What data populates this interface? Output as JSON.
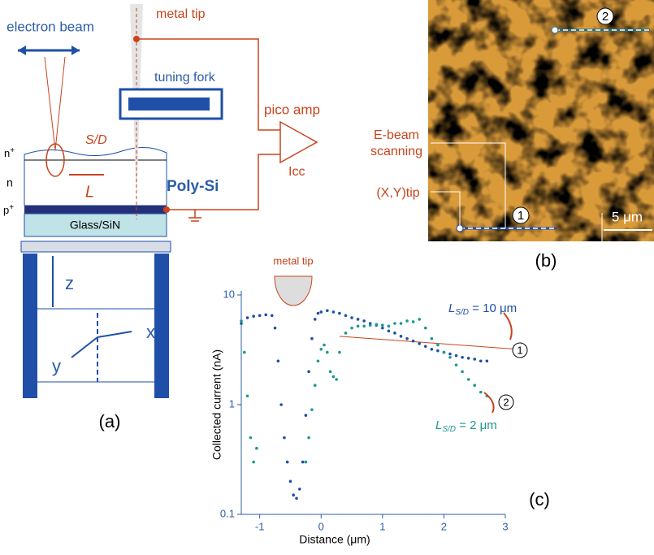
{
  "schematic": {
    "electron_beam": "electron beam",
    "metal_tip": "metal tip",
    "tuning_fork": "tuning fork",
    "pico_amp": "pico amp",
    "sd": "S/D",
    "n_plus": {
      "base": "n",
      "sup": "+"
    },
    "n": "n",
    "l": "L",
    "poly_si": "Poly-Si",
    "icc": "Icc",
    "p_plus": {
      "base": "p",
      "sup": "+"
    },
    "glass": "Glass/SiN",
    "z": "z",
    "x": "x",
    "y": "y",
    "panel": "(a)"
  },
  "image": {
    "ebeam": [
      "E-beam",
      "scanning"
    ],
    "xytip": "(X,Y)tip",
    "scale": "5 μm",
    "marker1": "1",
    "marker2": "2",
    "panel": "(b)"
  },
  "chart_data": {
    "type": "scatter",
    "panel": "(c)",
    "annotation": "metal tip",
    "xlabel": "Distance (μm)",
    "ylabel": "Collected current (nA)",
    "xlim": [
      -1.3,
      3
    ],
    "xticks": [
      -1,
      0,
      1,
      2,
      3
    ],
    "ylim": [
      0.1,
      10
    ],
    "yticks": [
      0.1,
      1,
      10
    ],
    "log_y": true,
    "series": [
      {
        "label": {
          "main": "L",
          "sub": "S/D",
          "rest": " = 10 μm"
        },
        "marker": "1",
        "color": "#1f4fa8",
        "x": [
          -1.3,
          -1.2,
          -1.1,
          -1.0,
          -0.9,
          -0.8,
          -0.75,
          -0.7,
          -0.65,
          -0.6,
          -0.55,
          -0.5,
          -0.45,
          -0.4,
          -0.35,
          -0.3,
          -0.25,
          -0.2,
          -0.15,
          -0.1,
          -0.05,
          0,
          0.1,
          0.2,
          0.3,
          0.4,
          0.5,
          0.6,
          0.7,
          0.8,
          0.9,
          1.0,
          1.1,
          1.2,
          1.3,
          1.4,
          1.5,
          1.6,
          1.7,
          1.8,
          1.9,
          2.0,
          2.1,
          2.2,
          2.3,
          2.4,
          2.5,
          2.6,
          2.7
        ],
        "values": [
          5.5,
          6.2,
          6.4,
          6.5,
          6.6,
          6.5,
          5,
          2.5,
          1,
          0.5,
          0.3,
          0.2,
          0.15,
          0.14,
          0.17,
          0.3,
          0.8,
          2,
          4,
          6,
          6.8,
          7,
          7.2,
          7,
          6.8,
          6.5,
          6.2,
          6,
          5.8,
          5.5,
          5.3,
          5,
          4.7,
          4.5,
          4.2,
          4,
          3.8,
          3.6,
          3.4,
          3.2,
          3.1,
          3,
          2.9,
          2.8,
          2.7,
          2.65,
          2.6,
          2.5,
          2.5
        ]
      },
      {
        "label": {
          "main": "L",
          "sub": "S/D",
          "rest": " = 2 μm"
        },
        "marker": "2",
        "color": "#1a9a8e",
        "x": [
          -1.3,
          -1.25,
          -1.2,
          -1.15,
          -1.1,
          -1.05,
          -0.25,
          -0.2,
          -0.15,
          -0.1,
          -0.05,
          0,
          0.05,
          0.1,
          0.15,
          0.2,
          0.25,
          0.3,
          0.4,
          0.5,
          0.6,
          0.7,
          0.8,
          0.9,
          1.0,
          1.1,
          1.2,
          1.3,
          1.4,
          1.5,
          1.6,
          1.7,
          1.8,
          1.9,
          2.0,
          2.1,
          2.2,
          2.3,
          2.4,
          2.5,
          2.6,
          2.7
        ],
        "values": [
          5.8,
          3,
          1.2,
          0.5,
          0.3,
          0.4,
          0.3,
          0.5,
          0.9,
          1.5,
          2.5,
          3.2,
          3.5,
          3,
          2,
          1.8,
          1.7,
          3,
          4.5,
          5,
          5.2,
          5.2,
          5.3,
          5.4,
          5.3,
          5.2,
          5.5,
          5.5,
          5.8,
          5.7,
          6,
          5,
          4,
          3.5,
          3,
          2.7,
          2.3,
          2,
          1.7,
          1.5,
          1.3,
          1.2
        ]
      }
    ]
  }
}
